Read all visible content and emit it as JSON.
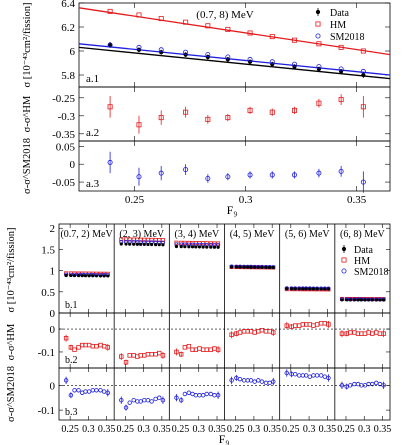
{
  "colors": {
    "data": "#000000",
    "hm": "#e41a1c",
    "sm": "#1f1fe0"
  },
  "legend": {
    "data": "Data",
    "hm": "HM",
    "sm": "SM2018"
  },
  "chart_data": [
    {
      "type": "scatter",
      "id": "a.1",
      "title": "(0.7, 8) MeV",
      "panel_label": "a.1",
      "ylabel": "σ [10⁻⁴³cm²/fission]",
      "xlim": [
        0.225,
        0.365
      ],
      "ylim": [
        5.7,
        6.4
      ],
      "yticks": [
        "5.8",
        "6",
        "6.2",
        "6.4"
      ],
      "ytick_values": [
        5.8,
        6.0,
        6.2,
        6.4
      ],
      "x": [
        0.239,
        0.252,
        0.262,
        0.273,
        0.283,
        0.292,
        0.302,
        0.312,
        0.322,
        0.333,
        0.343,
        0.353
      ],
      "series": [
        {
          "name": "Data",
          "values": [
            6.05,
            6.01,
            5.99,
            5.97,
            5.95,
            5.93,
            5.91,
            5.89,
            5.87,
            5.85,
            5.83,
            5.8
          ],
          "errors": [
            0.025,
            0.02,
            0.02,
            0.02,
            0.02,
            0.02,
            0.02,
            0.02,
            0.02,
            0.02,
            0.02,
            0.025
          ]
        },
        {
          "name": "HM",
          "values": [
            6.33,
            6.3,
            6.27,
            6.24,
            6.21,
            6.18,
            6.15,
            6.12,
            6.09,
            6.06,
            6.03,
            6.0
          ]
        },
        {
          "name": "SM2018",
          "values": [
            6.05,
            6.03,
            6.01,
            5.99,
            5.97,
            5.95,
            5.93,
            5.91,
            5.89,
            5.87,
            5.85,
            5.83
          ]
        }
      ],
      "fits": {
        "Data": [
          [
            0.225,
            6.03
          ],
          [
            0.365,
            5.77
          ]
        ],
        "HM": [
          [
            0.225,
            6.36
          ],
          [
            0.365,
            5.97
          ]
        ],
        "SM2018": [
          [
            0.225,
            6.06
          ],
          [
            0.365,
            5.8
          ]
        ]
      }
    },
    {
      "type": "scatter",
      "id": "a.2",
      "panel_label": "a.2",
      "ylabel": "σ-σ^HM",
      "xlim": [
        0.225,
        0.365
      ],
      "ylim": [
        -0.37,
        -0.22
      ],
      "yticks": [
        "-0.25",
        "-0.3",
        "-0.35"
      ],
      "ytick_values": [
        -0.25,
        -0.3,
        -0.35
      ],
      "x": [
        0.239,
        0.252,
        0.262,
        0.273,
        0.283,
        0.292,
        0.302,
        0.312,
        0.322,
        0.333,
        0.343,
        0.353
      ],
      "series": [
        {
          "name": "HM",
          "values": [
            -0.275,
            -0.325,
            -0.305,
            -0.29,
            -0.31,
            -0.305,
            -0.285,
            -0.29,
            -0.285,
            -0.265,
            -0.255,
            -0.275
          ],
          "errors": [
            0.03,
            0.025,
            0.02,
            0.015,
            0.012,
            0.01,
            0.01,
            0.01,
            0.01,
            0.012,
            0.015,
            0.03
          ]
        }
      ]
    },
    {
      "type": "scatter",
      "id": "a.3",
      "panel_label": "a.3",
      "ylabel": "σ-σ^SM2018",
      "xlim": [
        0.225,
        0.365
      ],
      "ylim": [
        -0.075,
        0.065
      ],
      "yticks": [
        "0.05",
        "0",
        "-0.05"
      ],
      "ytick_values": [
        0.05,
        0.0,
        -0.05
      ],
      "x": [
        0.239,
        0.252,
        0.262,
        0.273,
        0.283,
        0.292,
        0.302,
        0.312,
        0.322,
        0.333,
        0.343,
        0.353
      ],
      "series": [
        {
          "name": "SM2018",
          "values": [
            0.005,
            -0.035,
            -0.025,
            -0.015,
            -0.04,
            -0.035,
            -0.03,
            -0.03,
            -0.03,
            -0.025,
            -0.02,
            -0.05
          ],
          "errors": [
            0.03,
            0.025,
            0.02,
            0.015,
            0.012,
            0.01,
            0.01,
            0.01,
            0.01,
            0.012,
            0.015,
            0.03
          ]
        }
      ],
      "xlabel": "F₉",
      "xticks": [
        "0.25",
        "0.3",
        "0.35"
      ],
      "xtick_values": [
        0.25,
        0.3,
        0.35
      ]
    },
    {
      "type": "scatter",
      "id": "b",
      "panel_labels": [
        "b.1",
        "b.2",
        "b.3"
      ],
      "xlabel": "F₉",
      "xticks": [
        "0.25",
        "0.3",
        "0.35"
      ],
      "xtick_values": [
        0.25,
        0.3,
        0.35
      ],
      "xlim": [
        0.225,
        0.365
      ],
      "bins": [
        "(0.7, 2) MeV",
        "(2, 3) MeV",
        "(3, 4) MeV",
        "(4, 5) MeV",
        "(5, 6) MeV",
        "(6, 8) MeV"
      ],
      "x": [
        0.239,
        0.252,
        0.262,
        0.273,
        0.283,
        0.292,
        0.302,
        0.312,
        0.322,
        0.333,
        0.343,
        0.353
      ],
      "row1": {
        "ylabel": "σ [10⁻⁴³cm²/fission]",
        "ylim": [
          0.0,
          2.1
        ],
        "yticks": [
          "0",
          "0.5",
          "1",
          "1.5",
          "2"
        ],
        "ytick_values": [
          0.0,
          0.5,
          1.0,
          1.5,
          2.0
        ],
        "data": [
          0.88,
          1.62,
          1.56,
          1.08,
          0.57,
          0.31
        ],
        "hm": [
          0.93,
          1.73,
          1.65,
          1.08,
          0.56,
          0.33
        ],
        "sm": [
          0.9,
          1.67,
          1.61,
          1.09,
          0.58,
          0.32
        ],
        "slope": 0.1
      },
      "row2": {
        "ylabel": "σ-σ^HM",
        "ylim": [
          -0.17,
          0.07
        ],
        "yticks": [
          "0",
          "-0.1"
        ],
        "ytick_values": [
          0.0,
          -0.1
        ],
        "bins": [
          [
            -0.04,
            -0.08,
            -0.09,
            -0.08,
            -0.07,
            -0.07,
            -0.07,
            -0.075,
            -0.075,
            -0.07,
            -0.075,
            -0.08
          ],
          [
            -0.12,
            -0.145,
            -0.115,
            -0.115,
            -0.12,
            -0.115,
            -0.115,
            -0.11,
            -0.11,
            -0.11,
            -0.105,
            -0.115
          ],
          [
            -0.1,
            -0.11,
            -0.08,
            -0.075,
            -0.09,
            -0.09,
            -0.085,
            -0.09,
            -0.09,
            -0.09,
            -0.085,
            -0.09
          ],
          [
            -0.025,
            -0.02,
            -0.015,
            -0.01,
            -0.01,
            -0.01,
            -0.015,
            -0.01,
            -0.005,
            -0.01,
            -0.01,
            -0.015
          ],
          [
            0.015,
            0.01,
            0.015,
            0.015,
            0.02,
            0.02,
            0.02,
            0.015,
            0.02,
            0.025,
            0.025,
            0.02
          ],
          [
            -0.02,
            -0.02,
            -0.015,
            -0.015,
            -0.02,
            -0.02,
            -0.02,
            -0.015,
            -0.02,
            -0.015,
            -0.02,
            -0.02
          ]
        ]
      },
      "row3": {
        "ylabel": "σ-σ^SM2018",
        "ylim": [
          -0.14,
          0.07
        ],
        "yticks": [
          "0",
          "-0.1"
        ],
        "ytick_values": [
          0.0,
          -0.1
        ],
        "bins": [
          [
            0.02,
            -0.04,
            -0.02,
            -0.02,
            -0.03,
            -0.025,
            -0.025,
            -0.02,
            -0.02,
            -0.02,
            -0.025,
            -0.03
          ],
          [
            -0.06,
            -0.09,
            -0.07,
            -0.06,
            -0.065,
            -0.065,
            -0.06,
            -0.06,
            -0.065,
            -0.055,
            -0.05,
            -0.06
          ],
          [
            -0.05,
            -0.06,
            -0.035,
            -0.03,
            -0.035,
            -0.04,
            -0.04,
            -0.04,
            -0.035,
            -0.035,
            -0.04,
            -0.04
          ],
          [
            0.02,
            0.03,
            0.025,
            0.02,
            0.02,
            0.02,
            0.015,
            0.02,
            0.015,
            0.01,
            0.01,
            0.015
          ],
          [
            0.05,
            0.045,
            0.045,
            0.04,
            0.04,
            0.04,
            0.035,
            0.04,
            0.04,
            0.04,
            0.035,
            0.03
          ],
          [
            0.0,
            -0.005,
            0.0,
            0.005,
            0.005,
            0.0,
            0.0,
            0.005,
            0.005,
            0.01,
            0.005,
            0.0
          ]
        ]
      }
    }
  ]
}
